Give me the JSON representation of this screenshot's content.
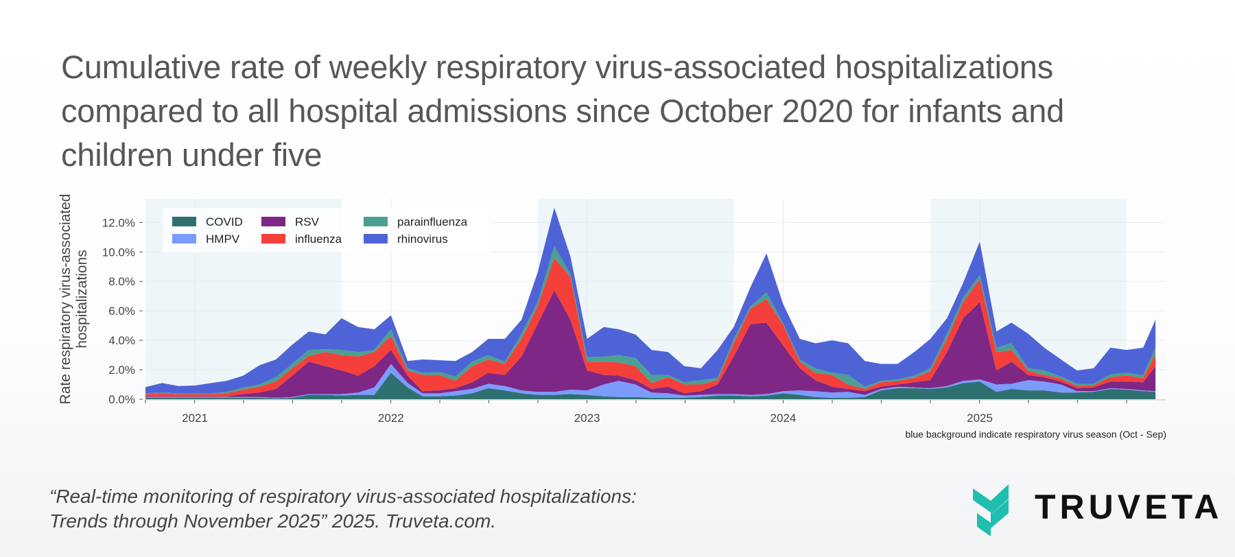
{
  "title_lines": [
    "Cumulative rate of weekly respiratory virus-associated hospitalizations",
    "compared to all hospital admissions since October 2020 for infants and",
    "children under five"
  ],
  "citation_lines": [
    "“Real-time monitoring of respiratory virus-associated hospitalizations:",
    "Trends through November 2025” 2025. Truveta.com."
  ],
  "logo": {
    "text": "TRUVETA",
    "color": "#1fbfb0"
  },
  "chart_data": {
    "type": "area",
    "stacked": true,
    "ylabel": "Rate respiratory virus-associated hospitalizations",
    "xlabel": "",
    "ylim": [
      0,
      13.6
    ],
    "yticks": [
      "0.0%",
      "2.0%",
      "4.0%",
      "6.0%",
      "8.0%",
      "10.0%",
      "12.0%"
    ],
    "ytick_values": [
      0,
      2,
      4,
      6,
      8,
      10,
      12
    ],
    "xticks": [
      "2021",
      "2022",
      "2023",
      "2024",
      "2025"
    ],
    "xlim": [
      "2020-10-01",
      "2025-12-10"
    ],
    "grid": true,
    "legend_position": "top-left",
    "note": "blue background indicate respiratory virus season (Oct - Sep)",
    "shaded_seasons": [
      [
        "2020-10-01",
        "2021-10-01"
      ],
      [
        "2022-10-01",
        "2023-10-01"
      ],
      [
        "2024-10-01",
        "2025-10-01"
      ]
    ],
    "season_color": "#eef6f9",
    "x": [
      "2020-10-01",
      "2020-11-01",
      "2020-12-01",
      "2021-01-01",
      "2021-02-01",
      "2021-03-01",
      "2021-04-01",
      "2021-05-01",
      "2021-06-01",
      "2021-07-01",
      "2021-08-01",
      "2021-09-01",
      "2021-10-01",
      "2021-11-01",
      "2021-12-01",
      "2022-01-01",
      "2022-02-01",
      "2022-03-01",
      "2022-04-01",
      "2022-05-01",
      "2022-06-01",
      "2022-07-01",
      "2022-08-01",
      "2022-09-01",
      "2022-10-01",
      "2022-11-01",
      "2022-12-01",
      "2023-01-01",
      "2023-02-01",
      "2023-03-01",
      "2023-04-01",
      "2023-05-01",
      "2023-06-01",
      "2023-07-01",
      "2023-08-01",
      "2023-09-01",
      "2023-10-01",
      "2023-11-01",
      "2023-12-01",
      "2024-01-01",
      "2024-02-01",
      "2024-03-01",
      "2024-04-01",
      "2024-05-01",
      "2024-06-01",
      "2024-07-01",
      "2024-08-01",
      "2024-09-01",
      "2024-10-01",
      "2024-11-01",
      "2024-12-01",
      "2025-01-01",
      "2025-02-01",
      "2025-03-01",
      "2025-04-01",
      "2025-05-01",
      "2025-06-01",
      "2025-07-01",
      "2025-08-01",
      "2025-09-01",
      "2025-10-01",
      "2025-11-01",
      "2025-11-24"
    ],
    "series": [
      {
        "name": "COVID",
        "color": "#2e7070",
        "values": [
          0.1,
          0.1,
          0.1,
          0.1,
          0.1,
          0.1,
          0.1,
          0.1,
          0.05,
          0.1,
          0.3,
          0.3,
          0.25,
          0.3,
          0.3,
          1.8,
          0.8,
          0.2,
          0.2,
          0.25,
          0.4,
          0.75,
          0.6,
          0.4,
          0.3,
          0.3,
          0.35,
          0.3,
          0.2,
          0.15,
          0.15,
          0.1,
          0.1,
          0.1,
          0.15,
          0.25,
          0.25,
          0.2,
          0.25,
          0.4,
          0.3,
          0.15,
          0.1,
          0.1,
          0.15,
          0.6,
          0.75,
          0.75,
          0.7,
          0.8,
          1.1,
          1.2,
          0.5,
          0.7,
          0.6,
          0.6,
          0.45,
          0.45,
          0.5,
          0.7,
          0.65,
          0.55,
          0.5
        ]
      },
      {
        "name": "HMPV",
        "color": "#7b9bff",
        "values": [
          0.05,
          0.05,
          0.05,
          0.05,
          0.05,
          0.05,
          0.05,
          0.05,
          0.05,
          0.05,
          0.05,
          0.05,
          0.1,
          0.15,
          0.5,
          0.6,
          0.3,
          0.2,
          0.2,
          0.3,
          0.3,
          0.3,
          0.3,
          0.2,
          0.2,
          0.2,
          0.3,
          0.3,
          0.8,
          1.1,
          0.85,
          0.35,
          0.3,
          0.15,
          0.15,
          0.1,
          0.1,
          0.1,
          0.1,
          0.15,
          0.3,
          0.4,
          0.35,
          0.4,
          0.15,
          0.1,
          0.1,
          0.05,
          0.05,
          0.1,
          0.15,
          0.15,
          0.5,
          0.35,
          0.7,
          0.6,
          0.55,
          0.1,
          0.05,
          0.05,
          0.05,
          0.05,
          0.05
        ]
      },
      {
        "name": "RSV",
        "color": "#7e2784",
        "values": [
          0.05,
          0.05,
          0.05,
          0.05,
          0.05,
          0.05,
          0.2,
          0.3,
          0.6,
          1.45,
          2.2,
          1.9,
          1.6,
          1.15,
          1.45,
          0.95,
          0.5,
          0.15,
          0.2,
          0.2,
          0.45,
          0.75,
          0.75,
          2.3,
          4.6,
          6.9,
          4.75,
          1.35,
          0.65,
          0.35,
          0.3,
          0.25,
          0.45,
          0.15,
          0.25,
          0.65,
          2.55,
          4.8,
          4.85,
          3.1,
          1.5,
          0.75,
          0.4,
          0.2,
          0.25,
          0.15,
          0.15,
          0.35,
          0.55,
          2.3,
          4.25,
          5.25,
          0.95,
          1.5,
          0.35,
          0.3,
          0.2,
          0.2,
          0.25,
          0.45,
          0.5,
          0.55,
          1.7
        ]
      },
      {
        "name": "influenza",
        "color": "#f53f3a",
        "values": [
          0.15,
          0.2,
          0.15,
          0.15,
          0.15,
          0.2,
          0.3,
          0.4,
          0.5,
          0.5,
          0.4,
          0.95,
          1.05,
          1.3,
          0.95,
          0.95,
          0.35,
          1.1,
          1.05,
          0.5,
          1.1,
          0.9,
          0.75,
          1.2,
          1.2,
          2.2,
          2.9,
          0.6,
          0.9,
          0.9,
          0.95,
          0.4,
          0.65,
          0.6,
          0.45,
          0.3,
          0.9,
          1.05,
          1.6,
          1.4,
          0.45,
          0.5,
          0.8,
          0.3,
          0.15,
          0.3,
          0.25,
          0.3,
          0.6,
          0.9,
          1.1,
          1.55,
          1.25,
          0.8,
          0.3,
          0.15,
          0.2,
          0.15,
          0.15,
          0.3,
          0.4,
          0.3,
          0.8
        ]
      },
      {
        "name": "parainfluenza",
        "color": "#4aa092",
        "values": [
          0.05,
          0.05,
          0.05,
          0.05,
          0.05,
          0.1,
          0.15,
          0.15,
          0.3,
          0.3,
          0.4,
          0.2,
          0.35,
          0.3,
          0.15,
          0.45,
          0.15,
          0.15,
          0.2,
          0.3,
          0.3,
          0.3,
          0.15,
          0.35,
          0.3,
          0.8,
          0.2,
          0.3,
          0.35,
          0.5,
          0.55,
          0.55,
          0.15,
          0.15,
          0.3,
          0.15,
          0.3,
          0.15,
          0.45,
          0.1,
          0.15,
          0.3,
          0.15,
          0.65,
          0.15,
          0.1,
          0.1,
          0.15,
          0.2,
          0.35,
          0.3,
          0.3,
          0.3,
          0.45,
          0.15,
          0.3,
          0.15,
          0.15,
          0.1,
          0.2,
          0.2,
          0.2,
          0.45
        ]
      },
      {
        "name": "rhinovirus",
        "color": "#4e64d6",
        "values": [
          0.43,
          0.65,
          0.5,
          0.53,
          0.7,
          0.75,
          0.8,
          1.3,
          1.2,
          1.3,
          1.25,
          1.0,
          2.15,
          1.7,
          1.4,
          0.95,
          0.5,
          0.9,
          0.8,
          1.05,
          0.65,
          1.1,
          1.55,
          0.95,
          2.0,
          2.6,
          1.2,
          1.25,
          2.0,
          1.75,
          1.6,
          1.7,
          1.55,
          1.1,
          0.8,
          1.9,
          0.8,
          1.3,
          2.65,
          1.3,
          1.4,
          1.7,
          2.2,
          2.15,
          1.75,
          1.15,
          1.05,
          1.6,
          2.0,
          1.05,
          1.0,
          2.25,
          1.1,
          1.4,
          2.35,
          1.55,
          1.15,
          0.9,
          1.05,
          1.8,
          1.55,
          1.85,
          1.9
        ]
      }
    ],
    "legend_order": [
      "COVID",
      "RSV",
      "parainfluenza",
      "HMPV",
      "influenza",
      "rhinovirus"
    ]
  }
}
